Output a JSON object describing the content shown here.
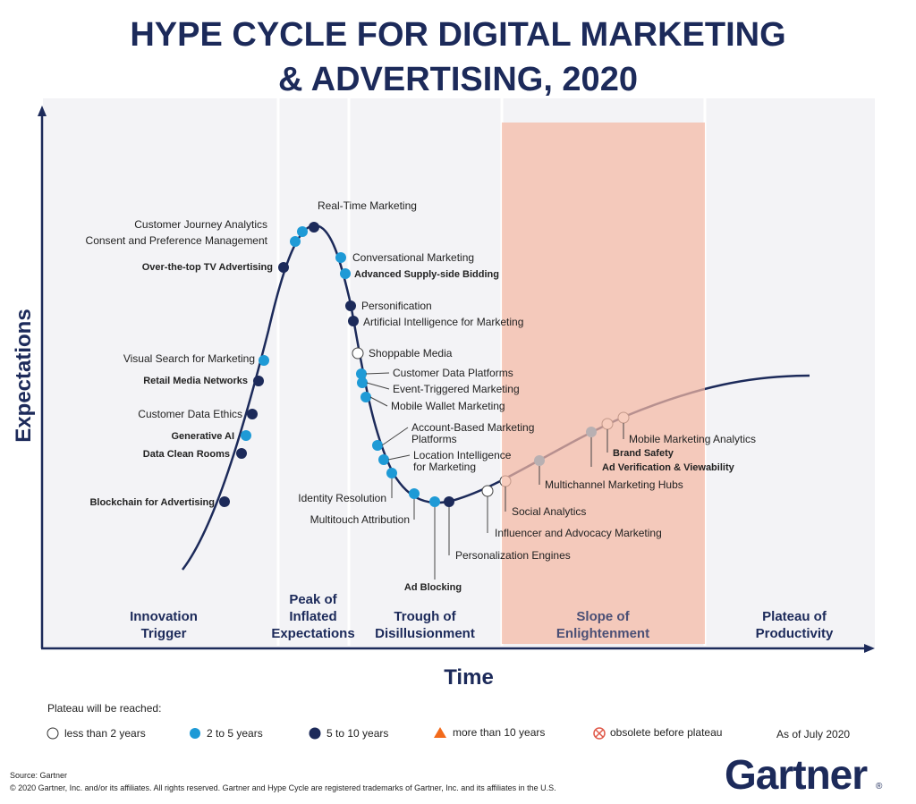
{
  "header": {
    "title": [
      "HYPE CYCLE FOR DIGITAL MARKETING",
      "& ADVERTISING, 2020"
    ]
  },
  "axes": {
    "y_label": "Expectations",
    "x_label": "Time"
  },
  "phases": [
    [
      "Innovation",
      "Trigger"
    ],
    [
      "Peak of",
      "Inflated",
      "Expectations"
    ],
    [
      "Trough of",
      "Disillusionment"
    ],
    [
      "Slope of",
      "Enlightenment"
    ],
    [
      "Plateau of",
      "Productivity"
    ]
  ],
  "nodes": [
    {
      "label": "Blockchain for Advertising"
    },
    {
      "label": "Data Clean Rooms"
    },
    {
      "label": "Generative AI"
    },
    {
      "label": "Customer Data Ethics"
    },
    {
      "label": "Retail Media Networks"
    },
    {
      "label": "Visual Search for Marketing"
    },
    {
      "label": "Over-the-top TV Advertising"
    },
    {
      "label": "Consent and Preference Management"
    },
    {
      "label": "Customer Journey Analytics"
    },
    {
      "label": "Real-Time Marketing"
    },
    {
      "label": "Conversational Marketing"
    },
    {
      "label": "Advanced Supply-side Bidding"
    },
    {
      "label": "Personification"
    },
    {
      "label": "Artificial Intelligence for Marketing"
    },
    {
      "label": "Shoppable Media"
    },
    {
      "label": "Customer Data Platforms"
    },
    {
      "label": "Event-Triggered Marketing"
    },
    {
      "label": "Mobile Wallet Marketing"
    },
    {
      "label": [
        "Account-Based Marketing",
        "Platforms"
      ]
    },
    {
      "label": [
        "Location Intelligence",
        "for Marketing"
      ]
    },
    {
      "label": "Identity Resolution"
    },
    {
      "label": "Multitouch Attribution"
    },
    {
      "label": "Ad Blocking"
    },
    {
      "label": "Personalization Engines"
    },
    {
      "label": "Influencer and Advocacy Marketing"
    },
    {
      "label": "Social Analytics"
    },
    {
      "label": "Multichannel Marketing Hubs"
    },
    {
      "label": "Ad Verification & Viewability"
    },
    {
      "label": "Brand Safety"
    },
    {
      "label": "Mobile Marketing Analytics"
    }
  ],
  "legend": {
    "title": "Plateau will be reached:",
    "items": [
      "less than 2 years",
      "2 to 5 years",
      "5 to 10 years",
      "more than 10 years",
      "obsolete before plateau"
    ],
    "as_of": "As of July 2020"
  },
  "footer": {
    "source": "Source: Gartner",
    "copyright": "© 2020 Gartner, Inc. and/or its affiliates. All rights reserved. Gartner and Hype Cycle are registered trademarks of Gartner, Inc. and its affiliates in the U.S.",
    "logo": "Gartner"
  }
}
